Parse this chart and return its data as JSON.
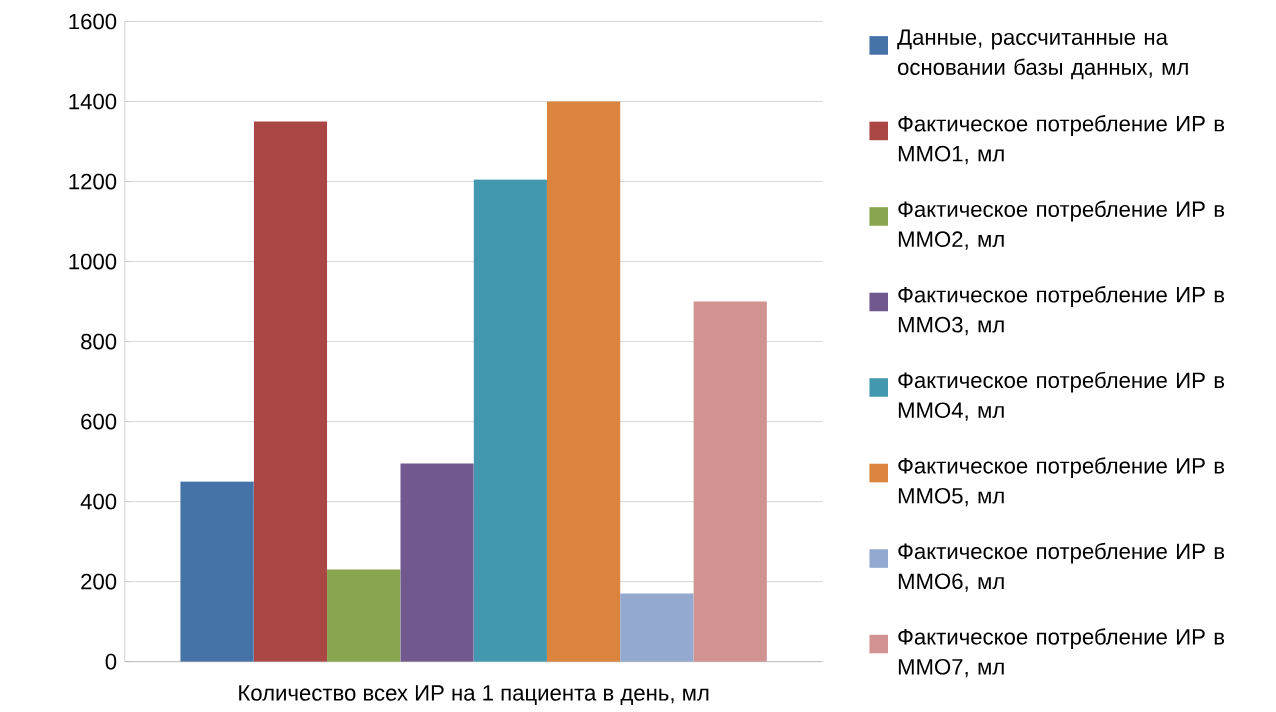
{
  "chart_data": {
    "type": "bar",
    "categories": [
      "Количество всех ИР на 1 пациента в день, мл"
    ],
    "series": [
      {
        "name": "Данные, рассчитанные на основании базы данных, мл",
        "color": "#4572a7",
        "values": [
          450
        ]
      },
      {
        "name": "Фактическое потребление ИР в ММО1, мл",
        "color": "#aa4643",
        "values": [
          1350
        ]
      },
      {
        "name": "Фактическое потребление ИР в ММО2, мл",
        "color": "#89a54e",
        "values": [
          230
        ]
      },
      {
        "name": "Фактическое потребление ИР в ММО3, мл",
        "color": "#71588f",
        "values": [
          495
        ]
      },
      {
        "name": "Фактическое потребление ИР в ММО4, мл",
        "color": "#4198af",
        "values": [
          1205
        ]
      },
      {
        "name": "Фактическое потребление ИР в ММО5, мл",
        "color": "#db843d",
        "values": [
          1400
        ]
      },
      {
        "name": "Фактическое потребление ИР в ММО6, мл",
        "color": "#93a9cf",
        "values": [
          170
        ]
      },
      {
        "name": "Фактическое потребление ИР в ММО7, мл",
        "color": "#d19392",
        "values": [
          900
        ]
      }
    ],
    "ylim": [
      0,
      1600
    ],
    "yticks": [
      0,
      200,
      400,
      600,
      800,
      1000,
      1200,
      1400,
      1600
    ],
    "grid": "y",
    "legend": "right"
  }
}
